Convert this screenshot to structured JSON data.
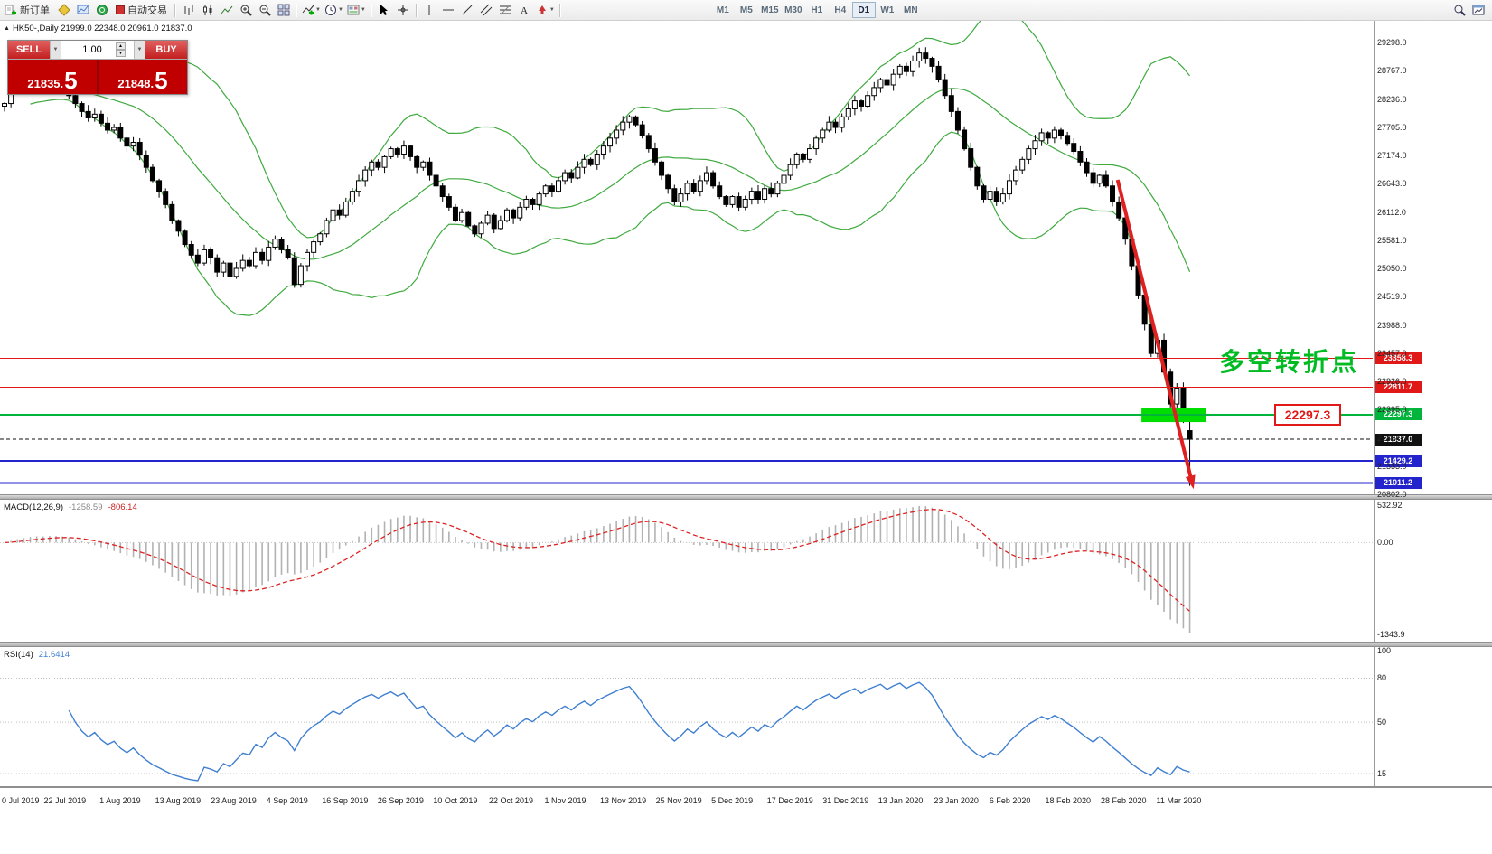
{
  "toolbar": {
    "new_order": "新订单",
    "auto_trading": "自动交易",
    "timeframes": [
      "M1",
      "M5",
      "M15",
      "M30",
      "H1",
      "H4",
      "D1",
      "W1",
      "MN"
    ],
    "active_timeframe": "D1"
  },
  "one_click": {
    "sell_label": "SELL",
    "buy_label": "BUY",
    "volume": "1.00",
    "sell_price": "21835.",
    "sell_price_big": "5",
    "buy_price": "21848.",
    "buy_price_big": "5"
  },
  "chart": {
    "title": "HK50-,Daily 21999.0 22348.0 20961.0 21837.0",
    "price_axis_labels": [
      "29298.0",
      "28767.0",
      "28236.0",
      "27705.0",
      "27174.0",
      "26643.0",
      "26112.0",
      "25581.0",
      "25050.0",
      "24519.0",
      "23988.0",
      "23457.0",
      "22926.0",
      "22395.0",
      "21864.0",
      "21333.0",
      "20802.0"
    ],
    "date_labels": [
      "0 Jul 2019",
      "22 Jul 2019",
      "1 Aug 2019",
      "13 Aug 2019",
      "23 Aug 2019",
      "4 Sep 2019",
      "16 Sep 2019",
      "26 Sep 2019",
      "10 Oct 2019",
      "22 Oct 2019",
      "1 Nov 2019",
      "13 Nov 2019",
      "25 Nov 2019",
      "5 Dec 2019",
      "17 Dec 2019",
      "31 Dec 2019",
      "13 Jan 2020",
      "23 Jan 2020",
      "6 Feb 2020",
      "18 Feb 2020",
      "28 Feb 2020",
      "11 Mar 2020"
    ]
  },
  "levels": [
    {
      "name": "resistance-upper",
      "price": 23358.3,
      "label": "23358.3",
      "color": "#e01818",
      "style": "solid",
      "width": 1
    },
    {
      "name": "resistance-lower",
      "price": 22811.7,
      "label": "22811.7",
      "color": "#e01818",
      "style": "solid",
      "width": 1
    },
    {
      "name": "pivot-green",
      "price": 22297.3,
      "label": "22297.3",
      "color": "#00b43c",
      "style": "solid",
      "width": 2
    },
    {
      "name": "current-price",
      "price": 21837.0,
      "label": "21837.0",
      "color": "#111111",
      "style": "dashed",
      "width": 1
    },
    {
      "name": "support-upper",
      "price": 21429.2,
      "label": "21429.2",
      "color": "#2424cc",
      "style": "solid",
      "width": 2
    },
    {
      "name": "support-lower",
      "price": 21011.2,
      "label": "21011.2",
      "color": "#2424cc",
      "style": "solid",
      "width": 2
    }
  ],
  "annotations": {
    "turning_point_text": "多空转折点",
    "turning_point_color": "#00bb22",
    "price_tag_text": "22297.3",
    "price_tag_color": "#e01818",
    "highlight_zone": {
      "price_top": 22420,
      "price_bottom": 22160,
      "bar_from": 176.5,
      "bar_to": 186.5,
      "color": "#00dd00"
    },
    "trend_arrow": {
      "from_bar": 172.8,
      "from_price": 26715,
      "to_bar": 184.6,
      "to_price": 20900,
      "color": "#e02020"
    }
  },
  "macd_panel": {
    "label": "MACD(12,26,9)",
    "value_main": "-1258.59",
    "value_signal": "-806.14",
    "axis_labels": [
      "532.92",
      "0.00",
      "-1343.9"
    ],
    "colors": {
      "histogram": "#b2b2b2",
      "signal": "#dd2222"
    }
  },
  "rsi_panel": {
    "label": "RSI(14)",
    "value": "21.6414",
    "period": 14,
    "axis_labels": [
      "100",
      "80",
      "50",
      "15"
    ],
    "levels": [
      80,
      50,
      15
    ],
    "color": "#3f7fd0"
  },
  "chart_data": {
    "type": "candlestick",
    "symbol": "HK50-",
    "timeframe": "Daily",
    "y_axis_range": [
      20802,
      29298
    ],
    "last_candle": {
      "open": 21999.0,
      "high": 22348.0,
      "low": 20961.0,
      "close": 21837.0
    },
    "first_open": 28100,
    "closes": [
      28150,
      28450,
      28520,
      28480,
      28560,
      28500,
      28430,
      28520,
      28460,
      28400,
      28300,
      28150,
      28000,
      27880,
      27950,
      27780,
      27650,
      27700,
      27500,
      27350,
      27420,
      27180,
      26950,
      26700,
      26500,
      26250,
      25950,
      25750,
      25500,
      25300,
      25150,
      25400,
      25250,
      24980,
      25150,
      24900,
      25050,
      25200,
      25100,
      25350,
      25200,
      25450,
      25600,
      25400,
      25250,
      24750,
      25100,
      25350,
      25550,
      25700,
      25950,
      26150,
      26050,
      26300,
      26500,
      26700,
      26900,
      27050,
      26950,
      27150,
      27300,
      27200,
      27350,
      27150,
      26950,
      27050,
      26800,
      26600,
      26400,
      26200,
      25950,
      26100,
      25850,
      25700,
      25900,
      26050,
      25800,
      25950,
      26150,
      26000,
      26200,
      26350,
      26250,
      26450,
      26600,
      26500,
      26700,
      26850,
      26750,
      26950,
      27100,
      27000,
      27200,
      27350,
      27500,
      27650,
      27800,
      27900,
      27750,
      27550,
      27300,
      27050,
      26800,
      26550,
      26300,
      26450,
      26650,
      26500,
      26700,
      26850,
      26600,
      26400,
      26250,
      26400,
      26200,
      26350,
      26500,
      26350,
      26550,
      26450,
      26650,
      26800,
      27000,
      27200,
      27100,
      27300,
      27500,
      27650,
      27800,
      27700,
      27900,
      28050,
      28200,
      28100,
      28300,
      28450,
      28600,
      28500,
      28700,
      28850,
      28750,
      28950,
      29100,
      29000,
      28850,
      28600,
      28300,
      28000,
      27650,
      27300,
      26950,
      26600,
      26350,
      26500,
      26300,
      26450,
      26700,
      26900,
      27100,
      27300,
      27450,
      27600,
      27500,
      27650,
      27550,
      27400,
      27250,
      27050,
      26850,
      26650,
      26800,
      26600,
      26300,
      26000,
      25600,
      25100,
      24550,
      24000,
      23450,
      23700,
      23100,
      22500,
      22800,
      22200,
      21837
    ],
    "overlays": [
      {
        "type": "bollinger",
        "period": 20,
        "deviation": 2,
        "color": "#3faa3f"
      }
    ]
  }
}
